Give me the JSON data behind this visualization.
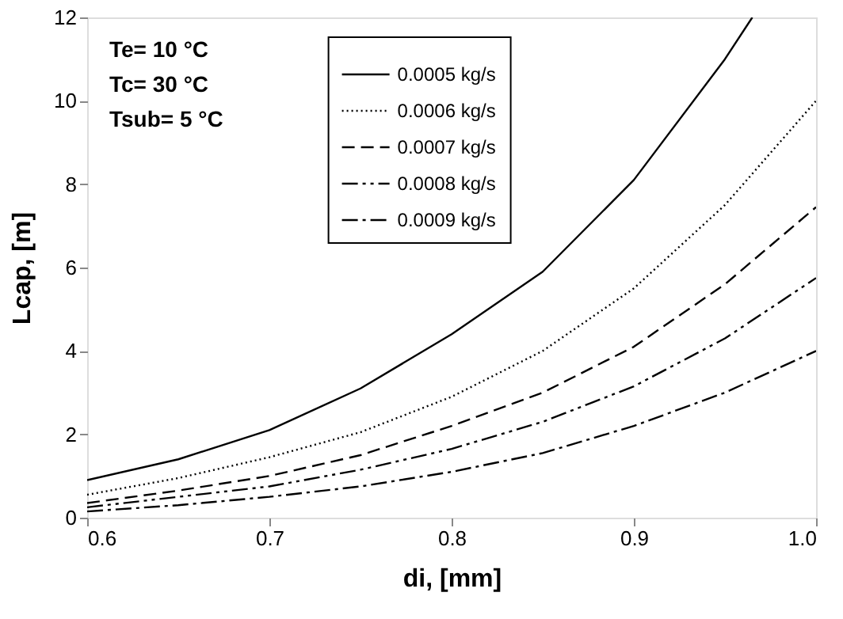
{
  "chart_data": {
    "type": "line",
    "xlabel": "di, [mm]",
    "ylabel": "Lcap, [m]",
    "xlim": [
      0.6,
      1.0
    ],
    "xticks": [
      0.6,
      0.7,
      0.8,
      0.9,
      {
        "value": 1.0,
        "label": "1.0"
      }
    ],
    "ylim": [
      0,
      12
    ],
    "yticks": [
      0,
      2,
      4,
      6,
      8,
      10,
      12
    ],
    "grid": false,
    "legend": "top",
    "marker": "none",
    "annotations": [
      "Te= 10 °C",
      "Tc= 30 °C",
      "Tsub= 5 °C"
    ],
    "series": [
      {
        "name": "0.0005 kg/s",
        "color": "#000000",
        "line_style": "solid",
        "x": [
          0.6,
          0.65,
          0.7,
          0.75,
          0.8,
          0.85,
          0.9,
          0.95,
          0.965
        ],
        "values": [
          0.9,
          1.4,
          2.1,
          3.1,
          4.4,
          5.9,
          8.1,
          11.0,
          12.0
        ]
      },
      {
        "name": "0.0006 kg/s",
        "color": "#000000",
        "line_style": "dotted",
        "x": [
          0.6,
          0.65,
          0.7,
          0.75,
          0.8,
          0.85,
          0.9,
          0.95,
          1.0
        ],
        "values": [
          0.55,
          0.95,
          1.45,
          2.05,
          2.9,
          4.0,
          5.5,
          7.5,
          10.0
        ]
      },
      {
        "name": "0.0007 kg/s",
        "color": "#000000",
        "line_style": "dashed",
        "x": [
          0.6,
          0.65,
          0.7,
          0.75,
          0.8,
          0.85,
          0.9,
          0.95,
          1.0
        ],
        "values": [
          0.35,
          0.65,
          1.0,
          1.5,
          2.2,
          3.0,
          4.1,
          5.6,
          7.45
        ]
      },
      {
        "name": "0.0008 kg/s",
        "color": "#000000",
        "line_style": "dashdotdot",
        "x": [
          0.6,
          0.65,
          0.7,
          0.75,
          0.8,
          0.85,
          0.9,
          0.95,
          1.0
        ],
        "values": [
          0.25,
          0.5,
          0.75,
          1.15,
          1.65,
          2.3,
          3.15,
          4.3,
          5.75
        ]
      },
      {
        "name": "0.0009 kg/s",
        "color": "#000000",
        "line_style": "dashdot",
        "x": [
          0.6,
          0.65,
          0.7,
          0.75,
          0.8,
          0.85,
          0.9,
          0.95,
          1.0
        ],
        "values": [
          0.15,
          0.3,
          0.5,
          0.75,
          1.1,
          1.55,
          2.2,
          3.0,
          4.0
        ]
      }
    ]
  }
}
